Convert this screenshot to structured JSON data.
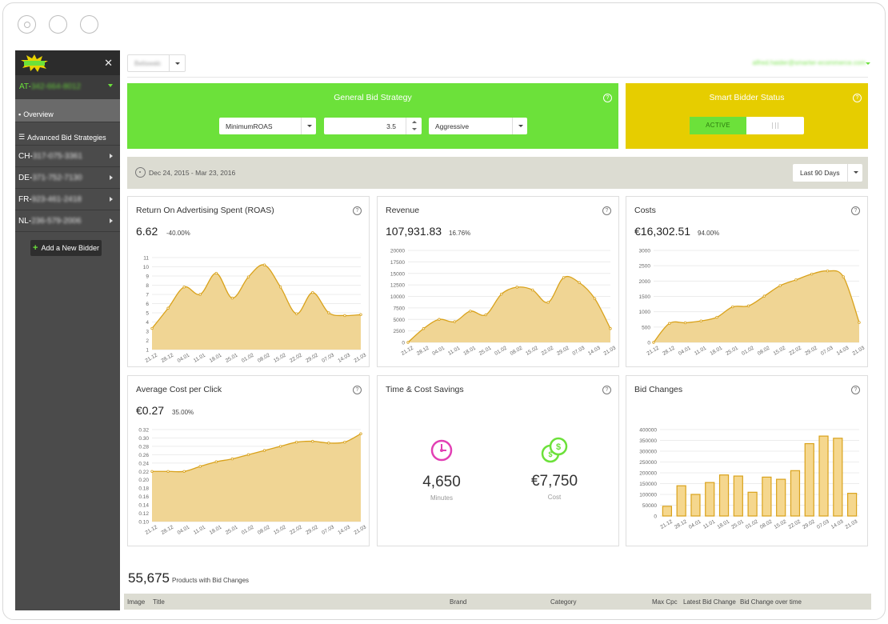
{
  "sidebar": {
    "account": "AT-",
    "account_blurred": "342-664-8012",
    "overview": "Overview",
    "advanced": "Advanced Bid Strategies",
    "countries": [
      {
        "code": "CH-",
        "blurred": "317-075-3361"
      },
      {
        "code": "DE-",
        "blurred": "371-752-7130"
      },
      {
        "code": "FR-",
        "blurred": "923-461-2418"
      },
      {
        "code": "NL-",
        "blurred": "236-579-2006"
      }
    ],
    "add_bidder": "Add a New Bidder"
  },
  "topbar": {
    "workspace": "Beliswalc",
    "user_email": "alfred.haider@smarter-ecommerce.com"
  },
  "strategy": {
    "title": "General Bid Strategy",
    "strategy_value": "MinimumROAS",
    "bid_value": "3.5",
    "mode_value": "Aggressive"
  },
  "status": {
    "title": "Smart Bidder Status",
    "active_label": "ACTIVE"
  },
  "date_bar": {
    "range": "Dec 24, 2015 - Mar 23, 2016",
    "period": "Last 90 Days"
  },
  "cards": {
    "roas": {
      "title": "Return On Advertising Spent (ROAS)",
      "value": "6.62",
      "change": "-40.00%"
    },
    "revenue": {
      "title": "Revenue",
      "value": "107,931.83",
      "change": "16.76%"
    },
    "costs": {
      "title": "Costs",
      "value": "€16,302.51",
      "change": "94.00%"
    },
    "cpc": {
      "title": "Average Cost per Click",
      "value": "€0.27",
      "change": "35.00%"
    },
    "savings": {
      "title": "Time & Cost Savings",
      "minutes_value": "4,650",
      "minutes_label": "Minutes",
      "cost_value": "€7,750",
      "cost_label": "Cost"
    },
    "bids": {
      "title": "Bid Changes"
    }
  },
  "colors": {
    "green": "#6ce13a",
    "yellow": "#e6cd00",
    "area_fill": "#f0d594",
    "area_line": "#d9a21b",
    "bar_fill": "#f5d78e",
    "bar_stroke": "#d9a21b",
    "minutes_icon": "#e23fb4",
    "cost_icon": "#6ce13a"
  },
  "icons": {
    "minutes": "clock-icon",
    "cost": "coins-icon",
    "date": "target-icon"
  },
  "products": {
    "count": "55,675",
    "label": "Products with Bid Changes",
    "columns": [
      "Image",
      "Title",
      "Brand",
      "Category",
      "Max Cpc",
      "Latest Bid Change",
      "Bid Change over time"
    ]
  },
  "chart_data": [
    {
      "id": "roas",
      "type": "area",
      "categories": [
        "21.12",
        "28.12",
        "04.01",
        "11.01",
        "18.01",
        "25.01",
        "01.02",
        "08.02",
        "15.02",
        "22.02",
        "29.02",
        "07.03",
        "14.03",
        "21.03"
      ],
      "values": [
        3.3,
        5.5,
        7.8,
        7.0,
        9.3,
        6.6,
        8.9,
        10.2,
        7.8,
        4.9,
        7.2,
        5.0,
        4.7,
        4.8
      ],
      "yticks": [
        1,
        2,
        3,
        4,
        5,
        6,
        7,
        8,
        9,
        10,
        11
      ],
      "ylim": [
        1,
        11
      ]
    },
    {
      "id": "revenue",
      "type": "area",
      "categories": [
        "21.12",
        "28.12",
        "04.01",
        "11.01",
        "18.01",
        "25.01",
        "01.02",
        "08.02",
        "15.02",
        "22.02",
        "29.02",
        "07.03",
        "14.03",
        "21.03"
      ],
      "values": [
        0,
        3000,
        5000,
        4500,
        6800,
        6000,
        10500,
        12000,
        11400,
        8700,
        14100,
        13000,
        9500,
        3000
      ],
      "yticks": [
        0,
        2500,
        5000,
        7500,
        10000,
        12500,
        15000,
        17500,
        20000
      ],
      "ylim": [
        0,
        20000
      ]
    },
    {
      "id": "costs",
      "type": "area",
      "categories": [
        "21.12",
        "28.12",
        "04.01",
        "11.01",
        "18.01",
        "25.01",
        "01.02",
        "08.02",
        "15.02",
        "22.02",
        "29.02",
        "07.03",
        "14.03",
        "21.03"
      ],
      "values": [
        0,
        620,
        640,
        700,
        820,
        1160,
        1190,
        1510,
        1850,
        2040,
        2230,
        2330,
        2140,
        650
      ],
      "yticks": [
        0,
        500,
        1000,
        1500,
        2000,
        2500,
        3000
      ],
      "ylim": [
        0,
        3000
      ]
    },
    {
      "id": "cpc",
      "type": "area",
      "categories": [
        "21.12",
        "28.12",
        "04.01",
        "11.01",
        "18.01",
        "25.01",
        "01.02",
        "08.02",
        "15.02",
        "22.02",
        "29.02",
        "07.03",
        "14.03",
        "21.03"
      ],
      "values": [
        0.22,
        0.22,
        0.22,
        0.232,
        0.243,
        0.25,
        0.26,
        0.27,
        0.28,
        0.29,
        0.292,
        0.288,
        0.29,
        0.31
      ],
      "yticks": [
        0.1,
        0.12,
        0.14,
        0.16,
        0.18,
        0.2,
        0.22,
        0.24,
        0.26,
        0.28,
        0.3,
        0.32
      ],
      "ylim": [
        0.1,
        0.32
      ]
    },
    {
      "id": "bids",
      "type": "bar",
      "categories": [
        "21.12",
        "28.12",
        "04.01",
        "11.01",
        "18.01",
        "25.01",
        "01.02",
        "08.02",
        "15.02",
        "22.02",
        "29.02",
        "07.03",
        "14.03",
        "21.03"
      ],
      "values": [
        45000,
        140000,
        100000,
        155000,
        190000,
        185000,
        110000,
        180000,
        170000,
        210000,
        335000,
        370000,
        360000,
        105000
      ],
      "yticks": [
        0,
        50000,
        100000,
        150000,
        200000,
        250000,
        300000,
        350000,
        400000
      ],
      "ylim": [
        0,
        400000
      ]
    }
  ]
}
